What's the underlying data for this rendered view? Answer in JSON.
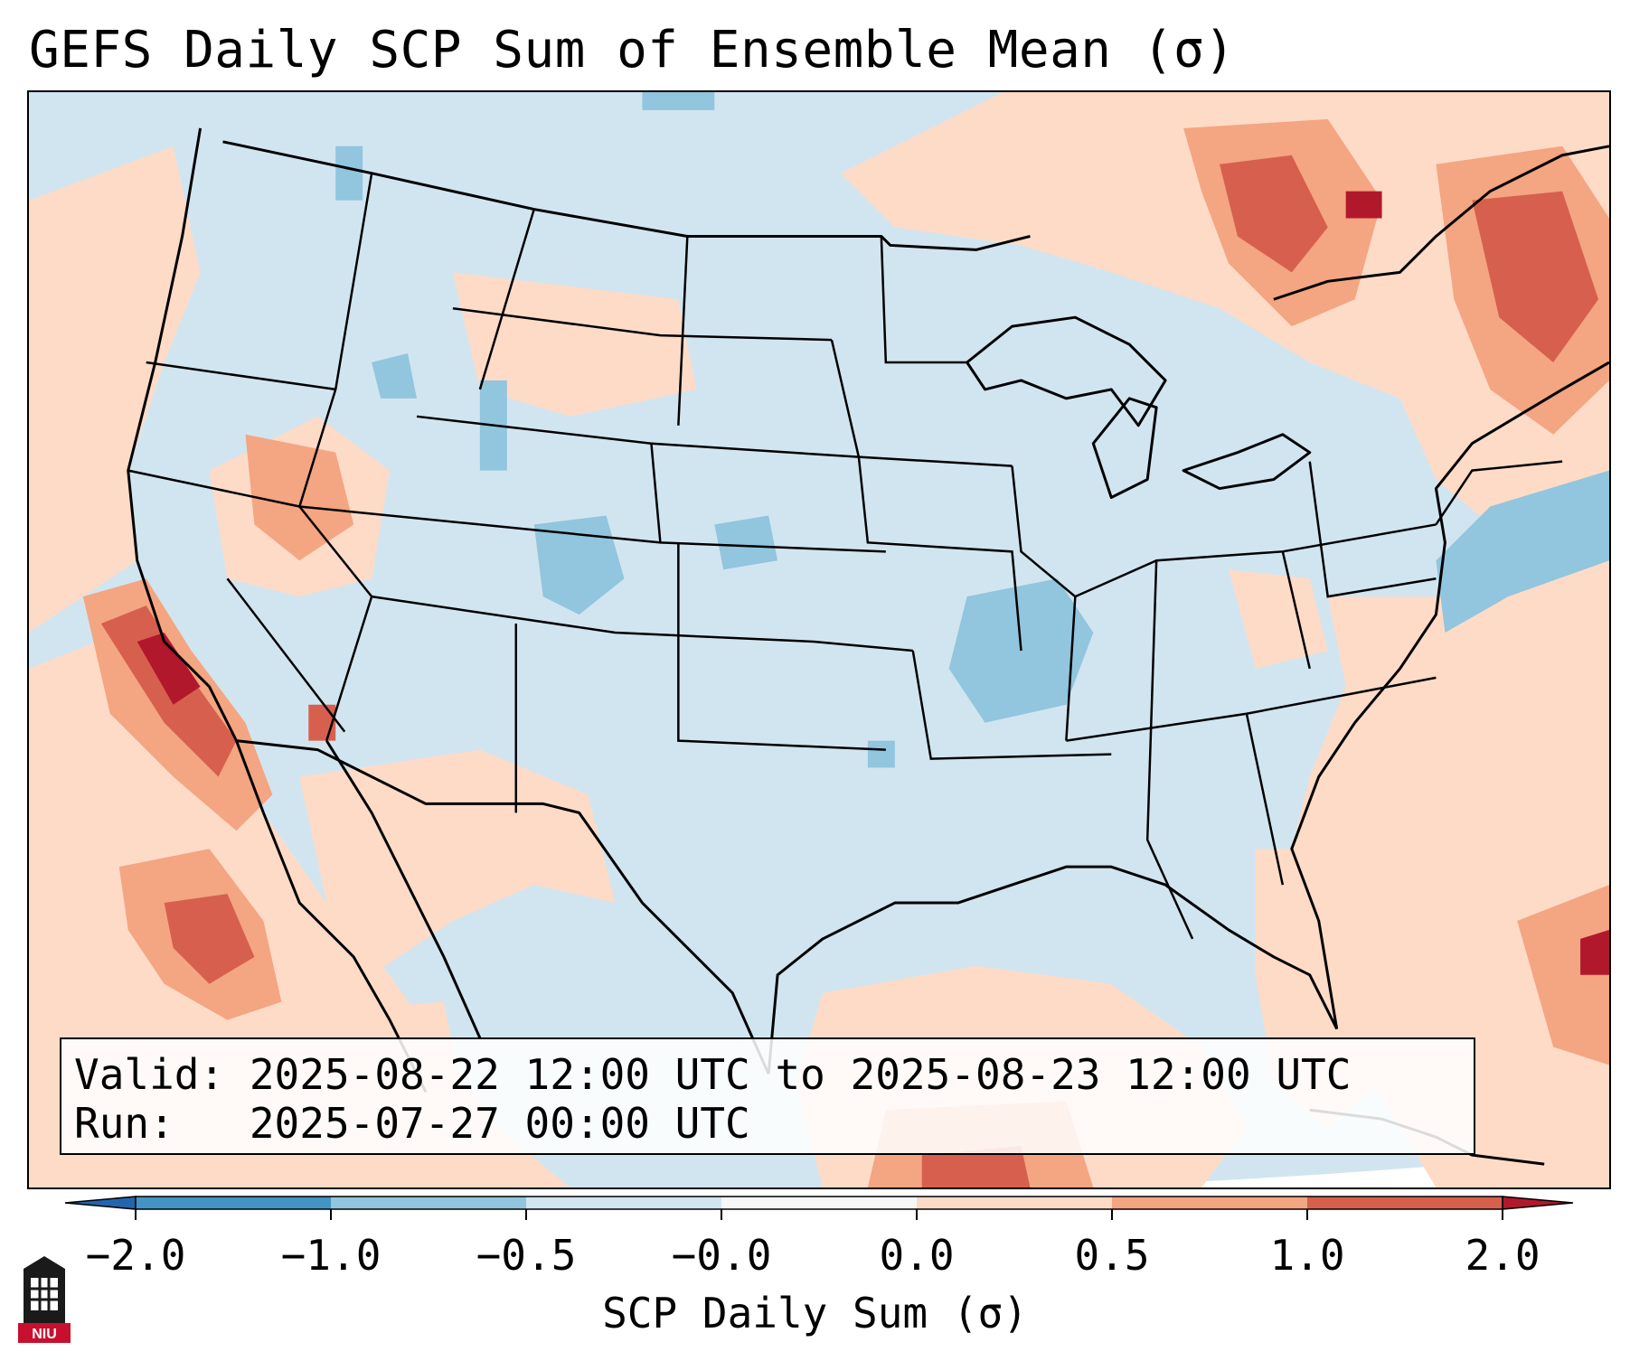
{
  "title": "GEFS Daily SCP Sum of Ensemble Mean (σ)",
  "info": {
    "valid_line": "Valid: 2025-08-22 12:00 UTC to 2025-08-23 12:00 UTC",
    "run_line": "Run:   2025-07-27 00:00 UTC"
  },
  "colorbar": {
    "label": "SCP Daily Sum (σ)",
    "tick_labels": [
      "−2.0",
      "−1.0",
      "−0.5",
      "−0.0",
      "0.0",
      "0.5",
      "1.0",
      "2.0"
    ],
    "colors": [
      "#2166ac",
      "#4393c3",
      "#92c5de",
      "#d1e5f0",
      "#f7f7f7",
      "#fddbc7",
      "#f4a582",
      "#d6604d",
      "#b2182b"
    ]
  },
  "logo": {
    "text": "NIU"
  },
  "map": {
    "background": "#d1e5f0",
    "region": "Continental United States, southern Canada, northern Mexico, Gulf of Mexico and western Atlantic"
  }
}
